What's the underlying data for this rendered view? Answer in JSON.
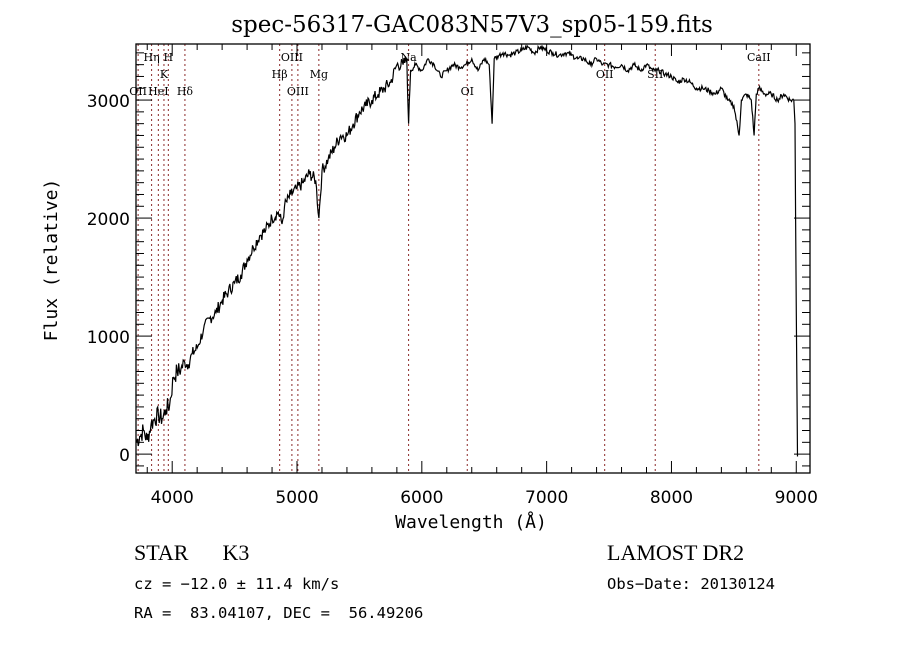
{
  "chart_data": {
    "type": "line",
    "title": "spec-56317-GAC083N57V3_sp05-159.fits",
    "xlabel": "Wavelength (Å)",
    "ylabel": "Flux (relative)",
    "xlim": [
      3710,
      9110
    ],
    "ylim": [
      -160,
      3475
    ],
    "xticks": [
      4000,
      5000,
      6000,
      7000,
      8000,
      9000
    ],
    "xtick_labels": [
      "4000",
      "5000",
      "6000",
      "7000",
      "8000",
      "9000"
    ],
    "yticks": [
      0,
      1000,
      2000,
      3000
    ],
    "ytick_labels": [
      "0",
      "1000",
      "2000",
      "3000"
    ],
    "grid": false,
    "series": [
      {
        "name": "spectrum",
        "x": [
          3710,
          3740,
          3770,
          3800,
          3830,
          3860,
          3890,
          3920,
          3950,
          3980,
          4010,
          4040,
          4070,
          4100,
          4130,
          4160,
          4200,
          4250,
          4300,
          4350,
          4400,
          4450,
          4500,
          4550,
          4600,
          4650,
          4700,
          4750,
          4800,
          4850,
          4880,
          4900,
          4950,
          5000,
          5050,
          5100,
          5150,
          5175,
          5200,
          5250,
          5300,
          5350,
          5400,
          5450,
          5500,
          5550,
          5600,
          5650,
          5700,
          5750,
          5800,
          5850,
          5880,
          5894,
          5910,
          5950,
          6000,
          6050,
          6100,
          6150,
          6200,
          6250,
          6300,
          6350,
          6400,
          6450,
          6500,
          6540,
          6563,
          6580,
          6620,
          6650,
          6700,
          6750,
          6800,
          6850,
          6900,
          6950,
          7000,
          7050,
          7100,
          7150,
          7200,
          7250,
          7300,
          7350,
          7400,
          7450,
          7500,
          7550,
          7600,
          7650,
          7700,
          7750,
          7800,
          7850,
          7900,
          7950,
          8000,
          8050,
          8100,
          8150,
          8200,
          8250,
          8300,
          8350,
          8400,
          8450,
          8500,
          8542,
          8560,
          8600,
          8640,
          8662,
          8680,
          8700,
          8750,
          8800,
          8850,
          8900,
          8950,
          8980,
          8990,
          9000,
          9010
        ],
        "y": [
          100,
          150,
          200,
          120,
          250,
          300,
          330,
          300,
          380,
          420,
          650,
          700,
          720,
          780,
          760,
          850,
          900,
          1050,
          1150,
          1200,
          1300,
          1380,
          1450,
          1520,
          1650,
          1750,
          1850,
          1900,
          2000,
          2050,
          1950,
          2100,
          2200,
          2250,
          2300,
          2380,
          2320,
          2000,
          2400,
          2500,
          2600,
          2700,
          2700,
          2800,
          2900,
          2950,
          3000,
          3050,
          3100,
          3150,
          3300,
          3300,
          3350,
          2800,
          3250,
          3300,
          3250,
          3350,
          3300,
          3200,
          3250,
          3300,
          3280,
          3300,
          3350,
          3250,
          3350,
          3300,
          2800,
          3350,
          3380,
          3400,
          3380,
          3400,
          3420,
          3450,
          3400,
          3450,
          3420,
          3400,
          3380,
          3400,
          3380,
          3350,
          3350,
          3300,
          3350,
          3300,
          3300,
          3280,
          3300,
          3250,
          3300,
          3250,
          3300,
          3250,
          3250,
          3220,
          3200,
          3150,
          3180,
          3150,
          3100,
          3100,
          3080,
          3050,
          3100,
          3000,
          2950,
          2700,
          3000,
          3050,
          3000,
          2700,
          3050,
          3100,
          3050,
          3050,
          3000,
          3050,
          3000,
          3000,
          2800,
          1200,
          -20
        ]
      }
    ],
    "line_markers": [
      {
        "label": "OII",
        "x": 3727,
        "row": 3
      },
      {
        "label": "Hη",
        "x": 3835,
        "row": 1
      },
      {
        "label": "HeI",
        "x": 3889,
        "row": 3
      },
      {
        "label": "K",
        "x": 3934,
        "row": 2
      },
      {
        "label": "H",
        "x": 3969,
        "row": 1
      },
      {
        "label": "Hδ",
        "x": 4102,
        "row": 3
      },
      {
        "label": "Hβ",
        "x": 4861,
        "row": 2
      },
      {
        "label": "OIII",
        "x": 4959,
        "row": 1
      },
      {
        "label": "OIII",
        "x": 5007,
        "row": 3
      },
      {
        "label": "Mg",
        "x": 5175,
        "row": 2
      },
      {
        "label": "Na",
        "x": 5894,
        "row": 1
      },
      {
        "label": "OI",
        "x": 6364,
        "row": 3
      },
      {
        "label": "OII",
        "x": 7465,
        "row": 2
      },
      {
        "label": "SII",
        "x": 7870,
        "row": 2
      },
      {
        "label": "CaII",
        "x": 8700,
        "row": 1
      }
    ],
    "marker_color": "#8b2a2a"
  },
  "info": {
    "class": "STAR",
    "subclass": "K3",
    "survey": "LAMOST DR2",
    "cz": "cz = −12.0 ± 11.4 km/s",
    "obs_date": "Obs−Date: 20130124",
    "coords": "RA =  83.04107, DEC =  56.49206"
  }
}
